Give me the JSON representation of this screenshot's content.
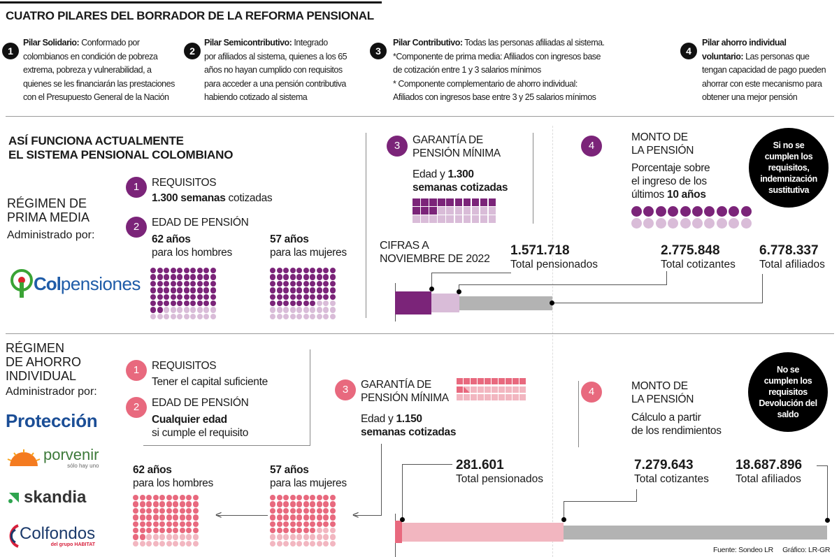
{
  "title": "CUATRO PILARES DEL BORRADOR DE LA REFORMA PENSIONAL",
  "pillars": [
    {
      "number": "1",
      "title": "Pilar Solidario:",
      "lines": [
        "Conformado por",
        "colombianos en condición de pobreza",
        "extrema, pobreza y vulnerabilidad, a",
        "quienes se les financiarán las prestaciones",
        "con el Presupuesto General de la Nación"
      ]
    },
    {
      "number": "2",
      "title": "Pilar Semicontributivo:",
      "lines": [
        "Integrado",
        "por afiliados al sistema, quienes a los 65",
        "años no hayan cumplido con requisitos",
        "para acceder a una pensión contributiva",
        "habiendo cotizado al sistema"
      ]
    },
    {
      "number": "3",
      "title": "Pilar Contributivo:",
      "lines": [
        "Todas las personas afiliadas al sistema.",
        "*Componente de prima media: Afiliados con ingresos base",
        "de cotización entre 1 y 3 salarios mínimos",
        "* Componente complementario de ahorro individual:",
        "Afiliados con ingresos base entre 3 y 25 salarios mínimos"
      ]
    },
    {
      "number": "4",
      "title": "Pilar ahorro individual",
      "lines": [
        "voluntario:",
        "Las personas que",
        "tengan capacidad de pago pueden",
        "ahorrar con este mecanismo para",
        "obtener una mejor pensión"
      ]
    }
  ],
  "colors": {
    "purple": "#7b2479",
    "purple_light": "#d9bcd8",
    "pink": "#e8697e",
    "pink_light": "#f2b6c0",
    "gray": "#b3b3b3"
  },
  "current": {
    "heading": [
      "ASÍ FUNCIONA ACTUALMENTE",
      "EL SISTEMA PENSIONAL COLOMBIANO"
    ],
    "regime": [
      "RÉGIMEN DE",
      "PRIMA MEDIA"
    ],
    "administered_by": "Administrado por:",
    "logo": {
      "icon": "colpensiones-logo",
      "text_a": "Col",
      "text_b": "pensiones"
    },
    "requirements": {
      "number": "1",
      "label": "REQUISITOS",
      "value_bold": "1.300 semanas",
      "value_rest": " cotizadas"
    },
    "age": {
      "number": "2",
      "label": "EDAD DE PENSIÓN",
      "men_age": "62 años",
      "men_label": "para los hombres",
      "women_age": "57 años",
      "women_label": "para las mujeres",
      "men_filled": 62,
      "women_filled": 57,
      "total": 80
    },
    "guarantee": {
      "number": "3",
      "label": [
        "GARANTÍA DE",
        "PENSIÓN MÍNIMA"
      ],
      "text_pre": "Edad y ",
      "text_bold1": "1.300",
      "text_bold2": "semanas cotizadas",
      "filled": 13,
      "total": 30
    },
    "amount": {
      "number": "4",
      "label": [
        "MONTO DE",
        "LA PENSIÓN"
      ],
      "text": [
        "Porcentaje sobre",
        "el ingreso de los"
      ],
      "text_last_pre": "últimos ",
      "text_last_bold": "10 años",
      "filled": 10,
      "total": 20
    },
    "note": [
      "Si no se",
      "cumplen los",
      "requisitos,",
      "indemnización",
      "sustitutiva"
    ],
    "figures_label": [
      "CIFRAS A",
      "NOVIEMBRE DE 2022"
    ],
    "stats": [
      {
        "value": "1.571.718",
        "label": "Total pensionados",
        "number": 1571718
      },
      {
        "value": "2.775.848",
        "label": "Total cotizantes",
        "number": 2775848
      },
      {
        "value": "6.778.337",
        "label": "Total afiliados",
        "number": 6778337
      }
    ]
  },
  "individual": {
    "regime": [
      "RÉGIMEN",
      "DE AHORRO",
      "INDIVIDUAL"
    ],
    "administered_by": "Administrador por:",
    "logos": [
      {
        "icon": "proteccion-logo",
        "text": "Protección"
      },
      {
        "icon": "porvenir-logo",
        "text": "porvenir",
        "tagline": "sólo hay uno"
      },
      {
        "icon": "skandia-logo",
        "text": "skandia"
      },
      {
        "icon": "colfondos-logo",
        "text": "Colfondos",
        "tagline": "del grupo HABITAT"
      }
    ],
    "requirements": {
      "number": "1",
      "label": "REQUISITOS",
      "value": "Tener el capital suficiente"
    },
    "age": {
      "number": "2",
      "label": "EDAD DE PENSIÓN",
      "value_bold": "Cualquier edad",
      "value_rest": "si cumple el requisito",
      "men_age": "62 años",
      "men_label": "para los hombres",
      "women_age": "57 años",
      "women_label": "para las mujeres",
      "men_filled": 62,
      "women_filled": 57,
      "total": 80
    },
    "guarantee": {
      "number": "3",
      "label": [
        "GARANTÍA DE",
        "PENSIÓN MÍNIMA"
      ],
      "text_pre": "Edad y ",
      "text_bold1": "1.150",
      "text_bold2": "semanas cotizadas",
      "filled": 11.5,
      "total": 30
    },
    "amount": {
      "number": "4",
      "label": [
        "MONTO DE",
        "LA PENSIÓN"
      ],
      "text": [
        "Cálculo a partir",
        "de los rendimientos"
      ]
    },
    "note": [
      "No se",
      "cumplen los",
      "requisitos",
      "Devolución del",
      "saldo"
    ],
    "stats": [
      {
        "value": "281.601",
        "label": "Total pensionados",
        "number": 281601
      },
      {
        "value": "7.279.643",
        "label": "Total cotizantes",
        "number": 7279643
      },
      {
        "value": "18.687.896",
        "label": "Total afiliados",
        "number": 18687896
      }
    ]
  },
  "footer": {
    "source": "Fuente: Sondeo LR",
    "credit": "Gráfico: LR-GR"
  }
}
